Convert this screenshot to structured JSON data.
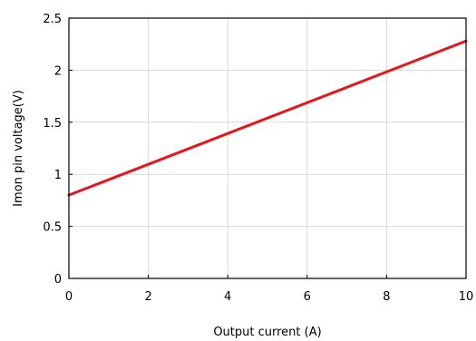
{
  "chart_data": {
    "type": "line",
    "xlabel": "Output current (A)",
    "ylabel": "Imon pin voltage(V)",
    "xlim": [
      0,
      10
    ],
    "ylim": [
      0,
      2.5
    ],
    "x_ticks": [
      "0",
      "2",
      "4",
      "6",
      "8",
      "10"
    ],
    "y_ticks": [
      "0",
      "0.5",
      "1",
      "1.5",
      "2",
      "2.5"
    ],
    "grid": true,
    "series": [
      {
        "x": [
          0,
          10
        ],
        "values": [
          0.8,
          2.28
        ],
        "color": "#e8141b"
      }
    ]
  }
}
